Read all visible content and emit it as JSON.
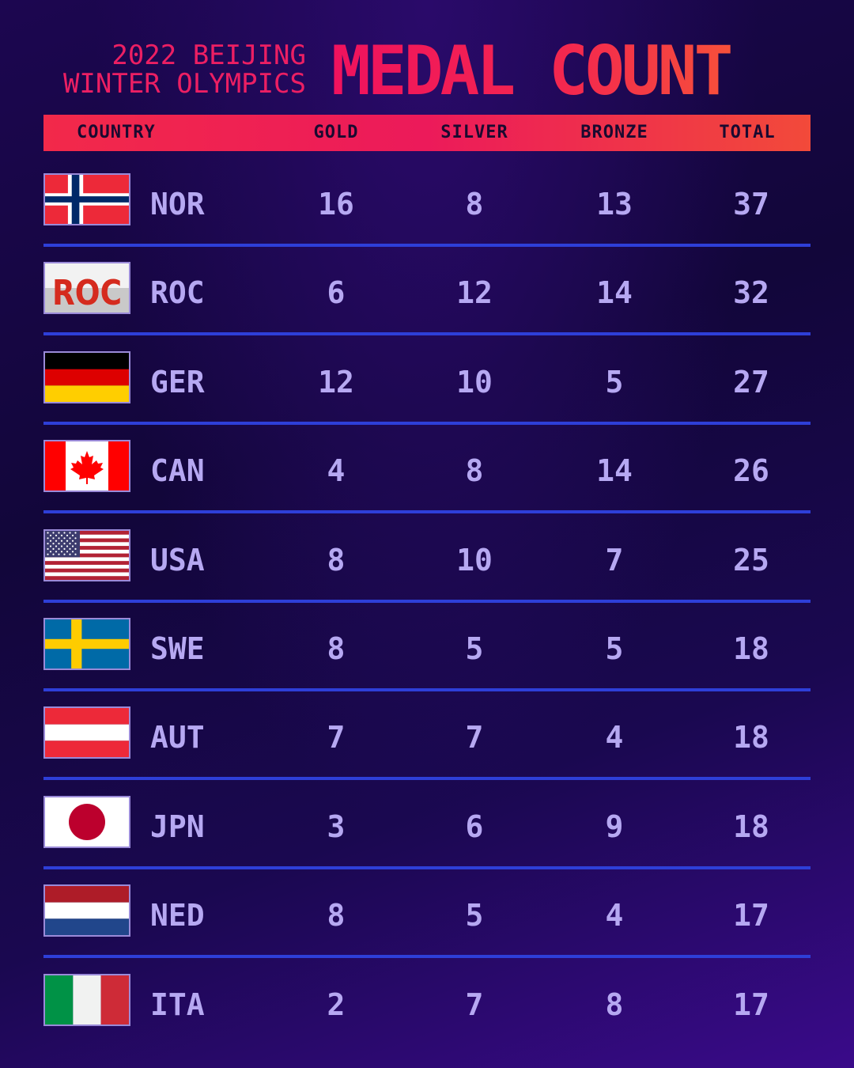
{
  "header": {
    "subtitle": "2022 BEIJING\nWINTER OLYMPICS",
    "title": "MEDAL COUNT"
  },
  "columns": {
    "country": "COUNTRY",
    "gold": "GOLD",
    "silver": "SILVER",
    "bronze": "BRONZE",
    "total": "TOTAL"
  },
  "colors": {
    "accent": "#ec1f63",
    "numbers": "#b6a8f2",
    "separator": "#2e3fd8"
  },
  "rows": [
    {
      "flag": "flag-norway-icon",
      "code": "NOR",
      "gold": "16",
      "silver": "8",
      "bronze": "13",
      "total": "37"
    },
    {
      "flag": "flag-roc-icon",
      "code": "ROC",
      "gold": "6",
      "silver": "12",
      "bronze": "14",
      "total": "32",
      "flag_text": "ROC"
    },
    {
      "flag": "flag-germany-icon",
      "code": "GER",
      "gold": "12",
      "silver": "10",
      "bronze": "5",
      "total": "27"
    },
    {
      "flag": "flag-canada-icon",
      "code": "CAN",
      "gold": "4",
      "silver": "8",
      "bronze": "14",
      "total": "26"
    },
    {
      "flag": "flag-usa-icon",
      "code": "USA",
      "gold": "8",
      "silver": "10",
      "bronze": "7",
      "total": "25"
    },
    {
      "flag": "flag-sweden-icon",
      "code": "SWE",
      "gold": "8",
      "silver": "5",
      "bronze": "5",
      "total": "18"
    },
    {
      "flag": "flag-austria-icon",
      "code": "AUT",
      "gold": "7",
      "silver": "7",
      "bronze": "4",
      "total": "18"
    },
    {
      "flag": "flag-japan-icon",
      "code": "JPN",
      "gold": "3",
      "silver": "6",
      "bronze": "9",
      "total": "18"
    },
    {
      "flag": "flag-netherlands-icon",
      "code": "NED",
      "gold": "8",
      "silver": "5",
      "bronze": "4",
      "total": "17"
    },
    {
      "flag": "flag-italy-icon",
      "code": "ITA",
      "gold": "2",
      "silver": "7",
      "bronze": "8",
      "total": "17"
    }
  ]
}
